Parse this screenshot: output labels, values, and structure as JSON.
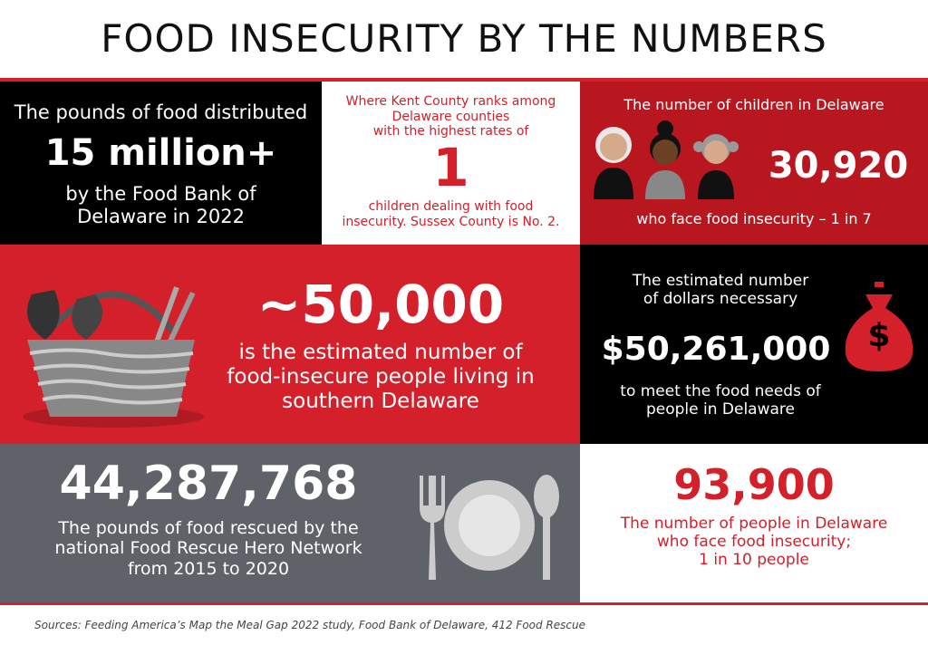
{
  "title": "FOOD INSECURITY BY THE NUMBERS",
  "panels": [
    {
      "lead": "The pounds of food distributed",
      "number": "15 million+",
      "tail": [
        "by the Food Bank of",
        "Delaware in 2022"
      ]
    },
    {
      "lead": [
        "Where Kent County ranks among",
        "Delaware counties",
        "with the highest rates of"
      ],
      "number": "1",
      "tail": [
        "children dealing with food",
        "insecurity. Sussex County is No. 2."
      ]
    },
    {
      "lead": "The number of children in Delaware",
      "number": "30,920",
      "tail": "who face food insecurity – 1 in 7"
    },
    {
      "number": "~50,000",
      "tail": [
        "is the estimated number of",
        "food-insecure people living in",
        "southern Delaware"
      ]
    },
    {
      "lead": [
        "The estimated number",
        "of dollars necessary"
      ],
      "number": "$50,261,000",
      "tail": [
        "to meet the food needs of",
        "people in Delaware"
      ],
      "icon_symbol": "$"
    },
    {
      "number": "44,287,768",
      "tail": [
        "The pounds of food rescued by the",
        "national Food Rescue Hero Network",
        "from 2015 to 2020"
      ]
    },
    {
      "number": "93,900",
      "tail": [
        "The number of people in Delaware",
        "who face food insecurity;",
        "1 in 10 people"
      ]
    }
  ],
  "sources": "Sources: Feeding America’s Map the Meal Gap 2022 study, Food Bank of Delaware, 412 Food Rescue"
}
